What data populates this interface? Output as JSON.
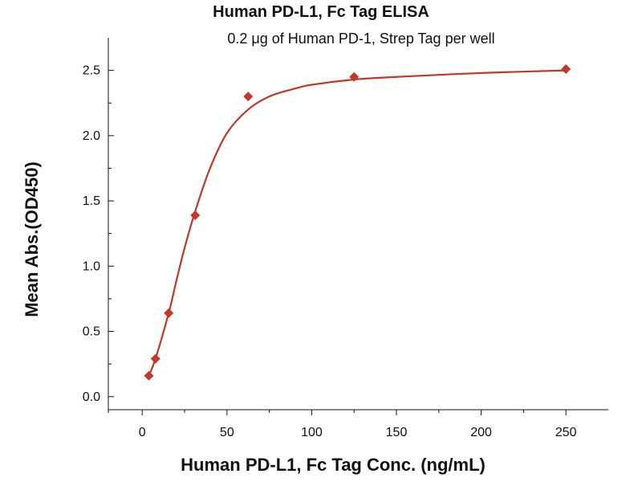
{
  "chart_data": {
    "type": "scatter",
    "title": "Human PD-L1, Fc Tag ELISA",
    "subtitle": "0.2 μg of Human PD-1, Strep Tag per well",
    "xlabel": "Human PD-L1, Fc Tag Conc. (ng/mL)",
    "ylabel": "Mean Abs.(OD450)",
    "xlim": [
      -20,
      275
    ],
    "ylim": [
      -0.1,
      2.75
    ],
    "x_ticks": [
      0,
      50,
      100,
      150,
      200,
      250
    ],
    "y_ticks": [
      0.0,
      0.5,
      1.0,
      1.5,
      2.0,
      2.5
    ],
    "x_tick_labels": [
      "0",
      "50",
      "100",
      "150",
      "200",
      "250"
    ],
    "y_tick_labels": [
      "0.0",
      "0.5",
      "1.0",
      "1.5",
      "2.0",
      "2.5"
    ],
    "grid": false,
    "legend": "none",
    "series": [
      {
        "marker": "diamond",
        "color": "#c0392b",
        "x": [
          3.9,
          7.8,
          15.6,
          31.25,
          62.5,
          125,
          250
        ],
        "y": [
          0.16,
          0.29,
          0.64,
          1.39,
          2.3,
          2.45,
          2.51
        ]
      }
    ],
    "fit_curve": {
      "color": "#c0392b",
      "x": [
        3.9,
        7.8,
        15.6,
        20,
        25,
        31.25,
        40,
        50,
        62.5,
        75,
        90,
        100,
        125,
        150,
        200,
        250
      ],
      "y": [
        0.16,
        0.29,
        0.64,
        0.88,
        1.14,
        1.42,
        1.75,
        2.02,
        2.2,
        2.3,
        2.36,
        2.39,
        2.43,
        2.45,
        2.48,
        2.5
      ]
    }
  }
}
